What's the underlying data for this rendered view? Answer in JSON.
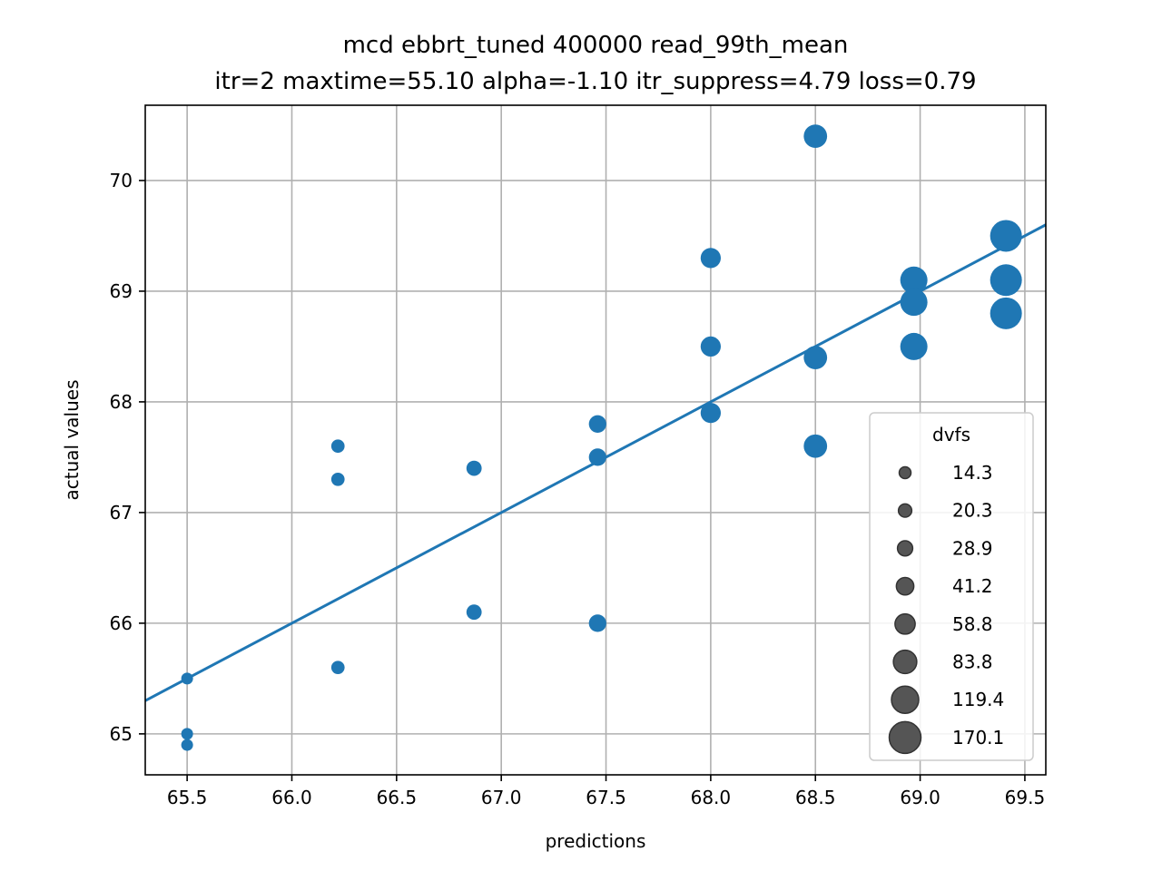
{
  "chart_data": {
    "type": "scatter",
    "title_line1": "mcd ebbrt_tuned 400000 read_99th_mean",
    "title_line2": "itr=2 maxtime=55.10 alpha=-1.10 itr_suppress=4.79 loss=0.79",
    "xlabel": "predictions",
    "ylabel": "actual values",
    "xlim": [
      65.3,
      69.6
    ],
    "ylim": [
      64.63,
      70.68
    ],
    "xticks": [
      65.5,
      66.0,
      66.5,
      67.0,
      67.5,
      68.0,
      68.5,
      69.0,
      69.5
    ],
    "xtick_labels": [
      "65.5",
      "66.0",
      "66.5",
      "67.0",
      "67.5",
      "68.0",
      "68.5",
      "69.0",
      "69.5"
    ],
    "yticks": [
      65,
      66,
      67,
      68,
      69,
      70
    ],
    "ytick_labels": [
      "65",
      "66",
      "67",
      "68",
      "69",
      "70"
    ],
    "grid": true,
    "point_color": "#1f77b4",
    "fit_line": {
      "x": [
        65.3,
        69.6
      ],
      "y": [
        65.3,
        69.6
      ],
      "color": "#1f77b4"
    },
    "points": [
      {
        "x": 65.5,
        "y": 65.5,
        "dvfs": 14.3
      },
      {
        "x": 65.5,
        "y": 65.0,
        "dvfs": 14.3
      },
      {
        "x": 65.5,
        "y": 64.9,
        "dvfs": 14.3
      },
      {
        "x": 66.22,
        "y": 67.6,
        "dvfs": 20.3
      },
      {
        "x": 66.22,
        "y": 67.3,
        "dvfs": 20.3
      },
      {
        "x": 66.22,
        "y": 65.6,
        "dvfs": 20.3
      },
      {
        "x": 66.87,
        "y": 67.4,
        "dvfs": 28.9
      },
      {
        "x": 66.87,
        "y": 66.1,
        "dvfs": 28.9
      },
      {
        "x": 67.46,
        "y": 67.8,
        "dvfs": 41.2
      },
      {
        "x": 67.46,
        "y": 67.5,
        "dvfs": 41.2
      },
      {
        "x": 67.46,
        "y": 66.0,
        "dvfs": 41.2
      },
      {
        "x": 68.0,
        "y": 69.3,
        "dvfs": 58.8
      },
      {
        "x": 68.0,
        "y": 68.5,
        "dvfs": 58.8
      },
      {
        "x": 68.0,
        "y": 67.9,
        "dvfs": 58.8
      },
      {
        "x": 68.5,
        "y": 70.4,
        "dvfs": 83.8
      },
      {
        "x": 68.5,
        "y": 68.4,
        "dvfs": 83.8
      },
      {
        "x": 68.5,
        "y": 67.6,
        "dvfs": 83.8
      },
      {
        "x": 68.97,
        "y": 69.1,
        "dvfs": 119.4
      },
      {
        "x": 68.97,
        "y": 68.9,
        "dvfs": 119.4
      },
      {
        "x": 68.97,
        "y": 68.5,
        "dvfs": 119.4
      },
      {
        "x": 69.41,
        "y": 69.5,
        "dvfs": 170.1
      },
      {
        "x": 69.41,
        "y": 69.1,
        "dvfs": 170.1
      },
      {
        "x": 69.41,
        "y": 68.8,
        "dvfs": 170.1
      }
    ],
    "legend": {
      "title": "dvfs",
      "placement": "lower-right",
      "marker_color": "#555555",
      "entries": [
        {
          "label": "14.3",
          "dvfs": 14.3
        },
        {
          "label": "20.3",
          "dvfs": 20.3
        },
        {
          "label": "28.9",
          "dvfs": 28.9
        },
        {
          "label": "41.2",
          "dvfs": 41.2
        },
        {
          "label": "58.8",
          "dvfs": 58.8
        },
        {
          "label": "83.8",
          "dvfs": 83.8
        },
        {
          "label": "119.4",
          "dvfs": 119.4
        },
        {
          "label": "170.1",
          "dvfs": 170.1
        }
      ]
    }
  }
}
